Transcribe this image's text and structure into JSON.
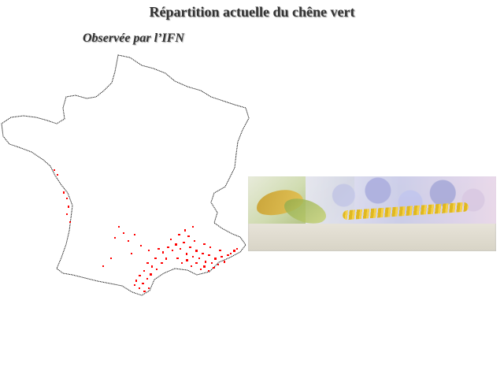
{
  "title": "Répartition actuelle du chêne vert",
  "subtitle": "Observée par l’IFN",
  "map": {
    "outline_color": "#111111",
    "observation_color": "#ff0000",
    "legend": ""
  },
  "banner": {
    "colors": [
      "#cbd9a8",
      "#a9acdf",
      "#e0b820"
    ]
  }
}
